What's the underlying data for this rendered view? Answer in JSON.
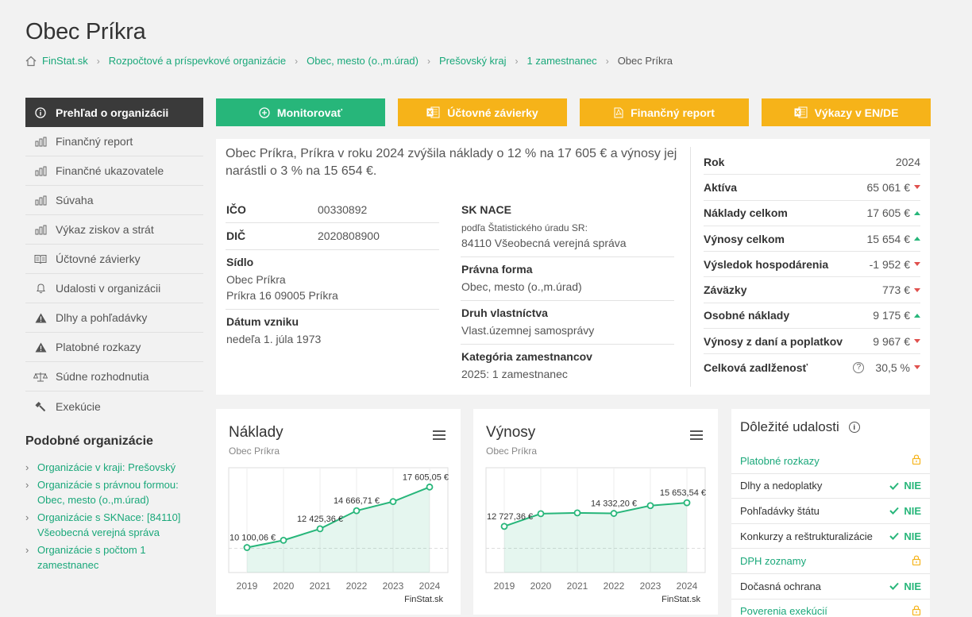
{
  "page": {
    "title": "Obec Príkra"
  },
  "breadcrumb": [
    "FinStat.sk",
    "Rozpočtové a príspevkové organizácie",
    "Obec, mesto (o.,m.úrad)",
    "Prešovský kraj",
    "1 zamestnanec",
    "Obec Príkra"
  ],
  "sidebar": {
    "items": [
      {
        "label": "Prehľad o organizácii",
        "icon": "info-icon"
      },
      {
        "label": "Finančný report",
        "icon": "bar-chart-icon"
      },
      {
        "label": "Finančné ukazovatele",
        "icon": "bar-chart-icon"
      },
      {
        "label": "Súvaha",
        "icon": "bar-chart-icon"
      },
      {
        "label": "Výkaz ziskov a strát",
        "icon": "bar-chart-icon"
      },
      {
        "label": "Účtovné závierky",
        "icon": "book-icon"
      },
      {
        "label": "Udalosti v organizácii",
        "icon": "bell-icon"
      },
      {
        "label": "Dlhy a pohľadávky",
        "icon": "warning-icon"
      },
      {
        "label": "Platobné rozkazy",
        "icon": "warning-icon"
      },
      {
        "label": "Súdne rozhodnutia",
        "icon": "scales-icon"
      },
      {
        "label": "Exekúcie",
        "icon": "gavel-icon"
      }
    ],
    "similar_title": "Podobné organizácie",
    "similar": [
      "Organizácie v kraji: Prešovský",
      "Organizácie s právnou formou: Obec, mesto (o.,m.úrad)",
      "Organizácie s SKNace: [84110] Všeobecná verejná správa",
      "Organizácie s počtom 1 zamestnanec"
    ]
  },
  "actions": {
    "monitor": "Monitorovať",
    "statements": "Účtovné závierky",
    "report": "Finančný report",
    "reports_en_de": "Výkazy v EN/DE"
  },
  "info": {
    "summary": "Obec Príkra, Príkra v roku 2024 zvýšila náklady o 12 % na 17 605 € a výnosy jej narástli o 3 % na 15 654 €.",
    "ico_label": "IČO",
    "ico": "00330892",
    "dic_label": "DIČ",
    "dic": "2020808900",
    "sidlo_label": "Sídlo",
    "sidlo_1": "Obec Príkra",
    "sidlo_2": "Príkra 16 09005 Príkra",
    "datum_label": "Dátum vzniku",
    "datum": "nedeľa 1. júla 1973",
    "nace_label": "SK NACE",
    "nace_note": "podľa Štatistického úradu SR:",
    "nace": "84110 Všeobecná verejná správa",
    "forma_label": "Právna forma",
    "forma": "Obec, mesto (o.,m.úrad)",
    "druh_label": "Druh vlastníctva",
    "druh": "Vlast.územnej samosprávy",
    "kat_label": "Kategória zamestnancov",
    "kat": "2025: 1 zamestnanec"
  },
  "kpi": {
    "year_label": "Rok",
    "year": "2024",
    "rows": [
      {
        "label": "Aktíva",
        "value": "65 061 €",
        "trend": "down"
      },
      {
        "label": "Náklady celkom",
        "value": "17 605 €",
        "trend": "up"
      },
      {
        "label": "Výnosy celkom",
        "value": "15 654 €",
        "trend": "up"
      },
      {
        "label": "Výsledok hospodárenia",
        "value": "-1 952 €",
        "trend": "down"
      },
      {
        "label": "Záväzky",
        "value": "773 €",
        "trend": "down"
      },
      {
        "label": "Osobné náklady",
        "value": "9 175 €",
        "trend": "up"
      },
      {
        "label": "Výnosy z daní a poplatkov",
        "value": "9 967 €",
        "trend": "down"
      },
      {
        "label": "Celková zadlženosť",
        "value": "30,5 %",
        "trend": "down"
      }
    ],
    "colors": {
      "up": "#27b67a",
      "down": "#e0504d"
    }
  },
  "chart_data": [
    {
      "type": "area",
      "title": "Náklady",
      "subtitle": "Obec Príkra",
      "credit": "FinStat.sk",
      "x": [
        "2019",
        "2020",
        "2021",
        "2022",
        "2023",
        "2024"
      ],
      "series": [
        {
          "values": [
            10100.06,
            11000,
            12425.36,
            14666.71,
            15800,
            17605.05
          ]
        }
      ],
      "labels": [
        {
          "index": 0,
          "text": "10 100,06 €"
        },
        {
          "index": 2,
          "text": "12 425,36 €"
        },
        {
          "index": 3,
          "text": "14 666,71 €"
        },
        {
          "index": 5,
          "text": "17 605,05 €"
        }
      ],
      "ylim": [
        7000,
        20000
      ]
    },
    {
      "type": "area",
      "title": "Výnosy",
      "subtitle": "Obec Príkra",
      "credit": "FinStat.sk",
      "x": [
        "2019",
        "2020",
        "2021",
        "2022",
        "2023",
        "2024"
      ],
      "series": [
        {
          "values": [
            12727.36,
            14300,
            14400,
            14332.2,
            15300,
            15653.54
          ]
        }
      ],
      "labels": [
        {
          "index": 0,
          "text": "12 727,36 €"
        },
        {
          "index": 3,
          "text": "14 332,20 €"
        },
        {
          "index": 5,
          "text": "15 653,54 €"
        }
      ],
      "ylim": [
        7000,
        20000
      ]
    }
  ],
  "events": {
    "title": "Dôležité udalosti",
    "rows": [
      {
        "label": "Platobné rozkazy",
        "status": "lock",
        "link": true
      },
      {
        "label": "Dlhy a nedoplatky",
        "status": "NIE",
        "link": false
      },
      {
        "label": "Pohľadávky štátu",
        "status": "NIE",
        "link": false
      },
      {
        "label": "Konkurzy a reštrukturalizácie",
        "status": "NIE",
        "link": false
      },
      {
        "label": "DPH zoznamy",
        "status": "lock",
        "link": true
      },
      {
        "label": "Dočasná ochrana",
        "status": "NIE",
        "link": false
      },
      {
        "label": "Poverenia exekúcií",
        "status": "lock",
        "link": true
      }
    ]
  }
}
